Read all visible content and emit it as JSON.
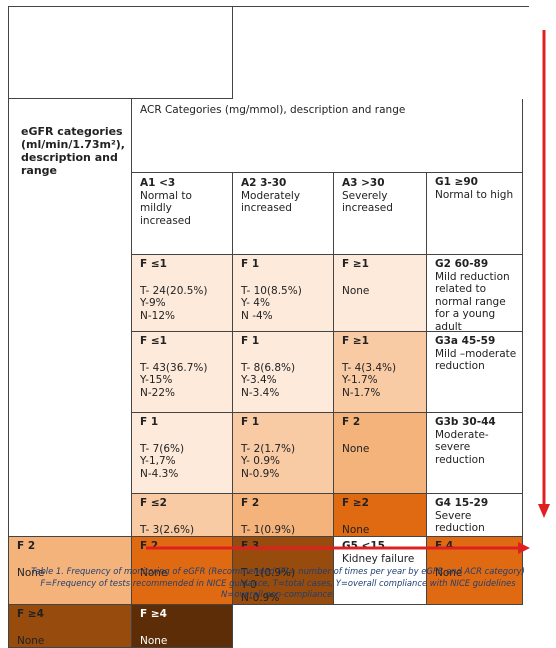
{
  "header": {
    "acr_title": "ACR Categories (mg/mmol), description and range",
    "acr": [
      {
        "code": "A1 <3",
        "desc": [
          "Normal to",
          "mildly",
          "increased"
        ]
      },
      {
        "code": "A2 3-30",
        "desc": [
          "Moderately",
          "increased"
        ]
      },
      {
        "code": "A3 >30",
        "desc": [
          "Severely",
          "increased"
        ]
      }
    ]
  },
  "egfr_title": [
    "eGFR categories",
    "(ml/min/1.73m²),",
    "description and",
    "range"
  ],
  "rows": [
    {
      "code": "G1 ≥90",
      "desc": [
        "Normal to high"
      ],
      "cells": [
        {
          "freq": "F ≤1",
          "vals": [
            "T- 24(20.5%)",
            "Y-9%",
            "N-12%"
          ],
          "bg": "#fdeadb"
        },
        {
          "freq": "F 1",
          "vals": [
            "T- 10(8.5%)",
            "Y- 4%",
            "N -4%"
          ],
          "bg": "#fdeadb"
        },
        {
          "freq": "F ≥1",
          "vals": [
            "None"
          ],
          "bg": "#fdeadb"
        }
      ]
    },
    {
      "code": "G2 60-89",
      "desc": [
        "Mild reduction",
        "related to",
        "normal range",
        "for a young",
        "adult"
      ],
      "cells": [
        {
          "freq": "F ≤1",
          "vals": [
            "T- 43(36.7%)",
            "Y-15%",
            "N-22%"
          ],
          "bg": "#fdeadb"
        },
        {
          "freq": "F 1",
          "vals": [
            "T- 8(6.8%)",
            "Y-3.4%",
            "N-3.4%"
          ],
          "bg": "#fdeadb"
        },
        {
          "freq": "F ≥1",
          "vals": [
            "T- 4(3.4%)",
            "Y-1.7%",
            "N-1.7%"
          ],
          "bg": "#f9cba5"
        }
      ]
    },
    {
      "code": "G3a 45-59",
      "desc": [
        "Mild –moderate",
        "reduction"
      ],
      "cells": [
        {
          "freq": "F 1",
          "vals": [
            "T- 7(6%)",
            "Y-1,7%",
            "N-4.3%"
          ],
          "bg": "#fdeadb"
        },
        {
          "freq": "F 1",
          "vals": [
            "T- 2(1.7%)",
            "Y- 0.9%",
            "N-0.9%"
          ],
          "bg": "#f9cba5"
        },
        {
          "freq": "F 2",
          "vals": [
            "None"
          ],
          "bg": "#f5b37c"
        }
      ]
    },
    {
      "code": "G3b 30-44",
      "desc": [
        "Moderate-",
        "severe",
        "reduction"
      ],
      "cells": [
        {
          "freq": "F ≤2",
          "vals": [
            "T- 3(2.6%)",
            "Y-0",
            "N-2.6%"
          ],
          "bg": "#f9cba5"
        },
        {
          "freq": "F 2",
          "vals": [
            "T- 1(0.9%)",
            "Y-0",
            "N-0.9%"
          ],
          "bg": "#f5b37c"
        },
        {
          "freq": "F ≥2",
          "vals": [
            "None"
          ],
          "bg": "#e06a12"
        }
      ]
    },
    {
      "code": "G4 15-29",
      "desc": [
        "Severe",
        "reduction"
      ],
      "cells": [
        {
          "freq": "F 2",
          "vals": [
            "None"
          ],
          "bg": "#f5b37c"
        },
        {
          "freq": "F 2",
          "vals": [
            "None"
          ],
          "bg": "#e06a12"
        },
        {
          "freq": "F 3",
          "vals": [
            "T- 1(0.9%)",
            "Y-0",
            "N-0.9%"
          ],
          "bg": "#974b0c"
        }
      ]
    },
    {
      "code": "G5 <15",
      "desc": [
        "Kidney failure"
      ],
      "cells": [
        {
          "freq": "F 4",
          "vals": [
            "None"
          ],
          "bg": "#e06a12"
        },
        {
          "freq": "F ≥4",
          "vals": [
            "None"
          ],
          "bg": "#974b0c"
        },
        {
          "freq": "F ≥4",
          "vals": [
            "None"
          ],
          "bg": "#5c2d06",
          "light": true
        }
      ]
    }
  ],
  "caption": [
    "Table 1. Frequency of monitoring of eGFR (Recommended (F)= number of times per year by eGFR and ACR category)",
    "F=Frequency of tests recommended in NICE guidance, T=total cases, Y=overall compliance with NICE guidelines",
    "N=overall non-compliance."
  ],
  "colors": {
    "arrow": "#e02020",
    "caption": "#1f3f73",
    "border": "#444444"
  }
}
